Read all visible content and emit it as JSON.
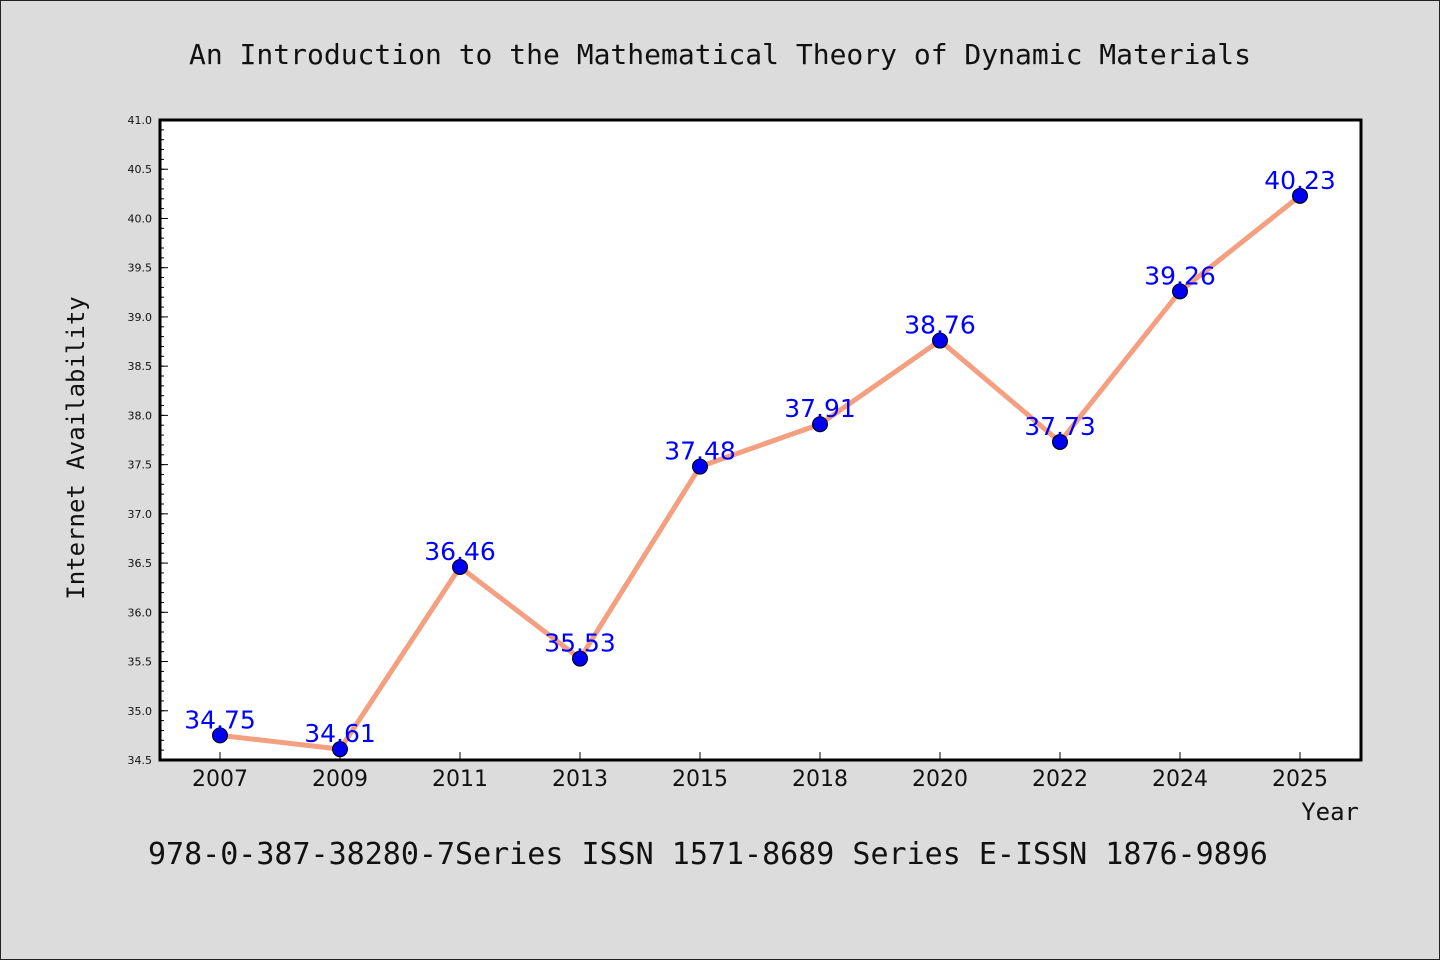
{
  "chart_data": {
    "type": "line",
    "title": "An Introduction to the Mathematical Theory of Dynamic Materials",
    "xlabel": "Year",
    "ylabel": "Internet Availability",
    "categories": [
      "2007",
      "2009",
      "2011",
      "2013",
      "2015",
      "2018",
      "2020",
      "2022",
      "2024",
      "2025"
    ],
    "series": [
      {
        "values": [
          34.75,
          34.61,
          36.46,
          35.53,
          37.48,
          37.91,
          38.76,
          37.73,
          39.26,
          40.23
        ]
      }
    ],
    "data_labels": [
      "34.75",
      "34.61",
      "36.46",
      "35.53",
      "37.48",
      "37.91",
      "38.76",
      "37.73",
      "39.26",
      "40.23"
    ],
    "ylim": [
      34.5,
      41.0
    ],
    "yticks": [
      "34.5",
      "35.0",
      "35.5",
      "36.0",
      "36.5",
      "37.0",
      "37.5",
      "38.0",
      "38.5",
      "39.0",
      "39.5",
      "40.0",
      "40.5",
      "41.0"
    ],
    "grid": false,
    "legend": "none",
    "colors": {
      "line": "#f4a080",
      "marker": "#0000ee",
      "data_label": "#0000ff",
      "background": "#dcdcdc",
      "plot_background": "#ffffff"
    }
  },
  "footer": "978-0-387-38280-7Series ISSN 1571-8689 Series E-ISSN 1876-9896"
}
